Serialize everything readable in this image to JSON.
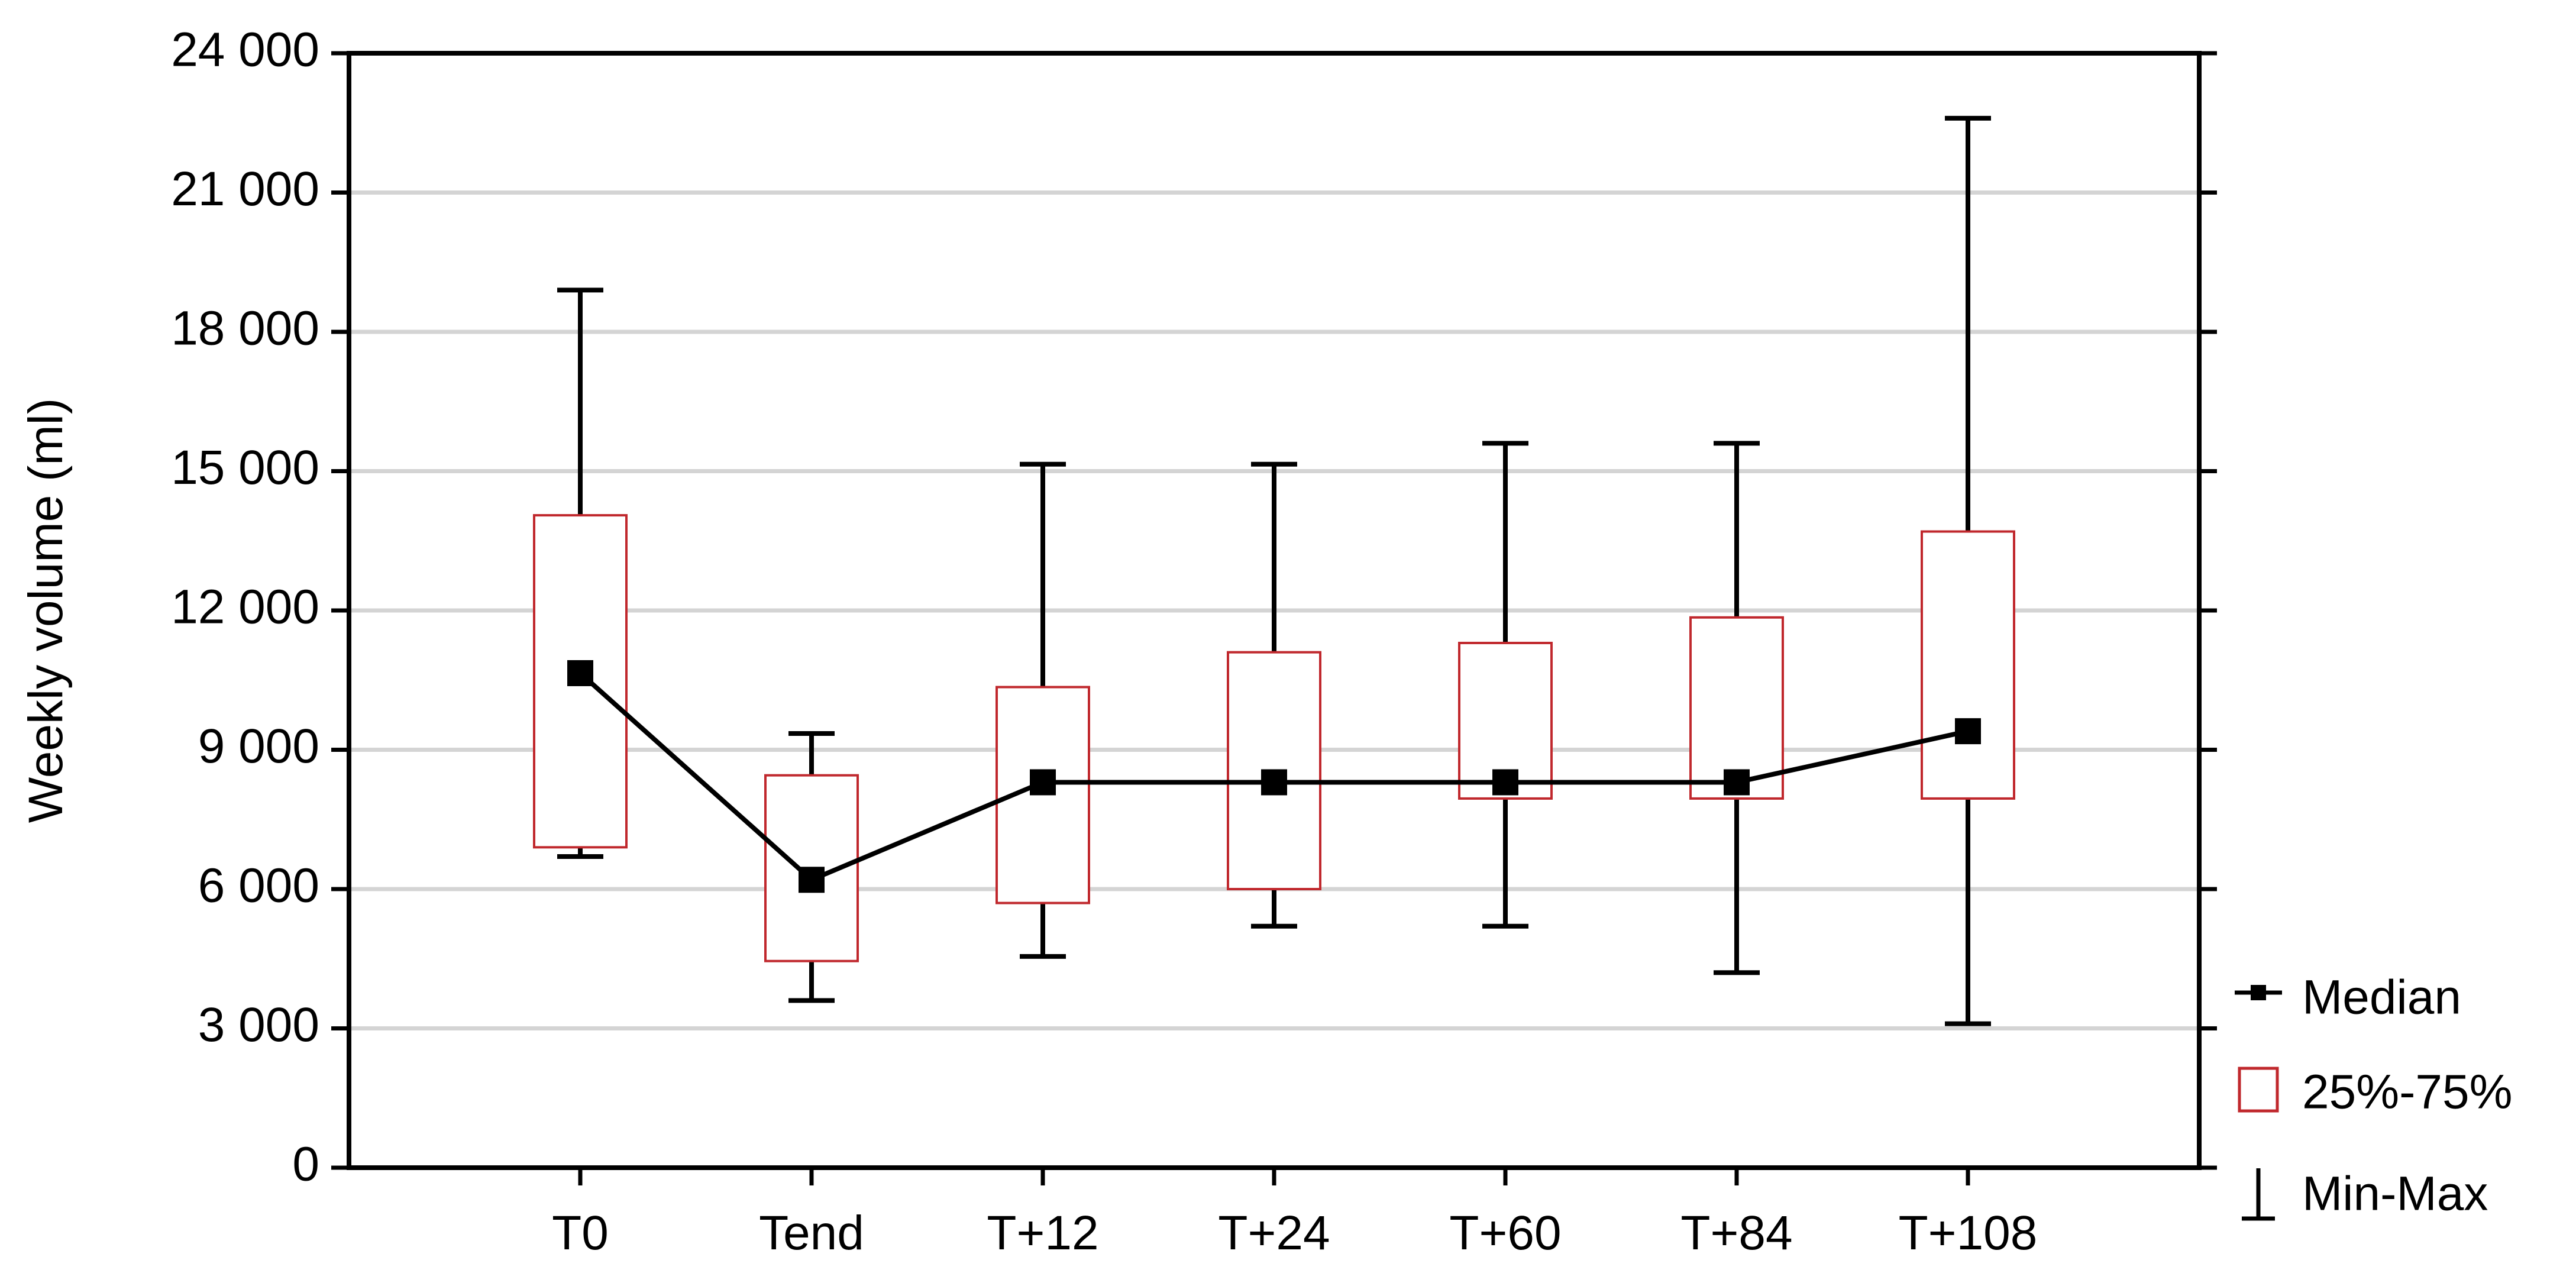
{
  "chart_data": {
    "type": "box",
    "title": "",
    "xlabel": "",
    "ylabel": "Weekly volume (ml)",
    "ylim": [
      0,
      24000
    ],
    "y_ticks": [
      0,
      3000,
      6000,
      9000,
      12000,
      15000,
      18000,
      21000,
      24000
    ],
    "y_tick_labels": [
      "0",
      "3 000",
      "6 000",
      "9 000",
      "12 000",
      "15 000",
      "18 000",
      "21 000",
      "24 000"
    ],
    "grid": "horizontal",
    "categories": [
      "T0",
      "Tend",
      "T+12",
      "T+24",
      "T+60",
      "T+84",
      "T+108"
    ],
    "median": [
      10650,
      6200,
      8300,
      8300,
      8300,
      8300,
      9400
    ],
    "q1": [
      6900,
      4450,
      5700,
      6000,
      7950,
      7950,
      7950
    ],
    "q3": [
      14050,
      8450,
      10350,
      11100,
      11300,
      11850,
      13700
    ],
    "min": [
      6700,
      3600,
      4550,
      5200,
      5200,
      4200,
      3100
    ],
    "max": [
      18900,
      9350,
      15150,
      15150,
      15600,
      15600,
      22600
    ],
    "legend": {
      "position": "right-bottom",
      "items": [
        {
          "label": "Median",
          "symbol": "line-square"
        },
        {
          "label": "25%-75%",
          "symbol": "box"
        },
        {
          "label": "Min-Max",
          "symbol": "whisker"
        }
      ]
    },
    "colors": {
      "median": "#000000",
      "box": "#c0282d",
      "whisker": "#000000",
      "grid": "#d4d4d4",
      "axis": "#000000"
    }
  }
}
